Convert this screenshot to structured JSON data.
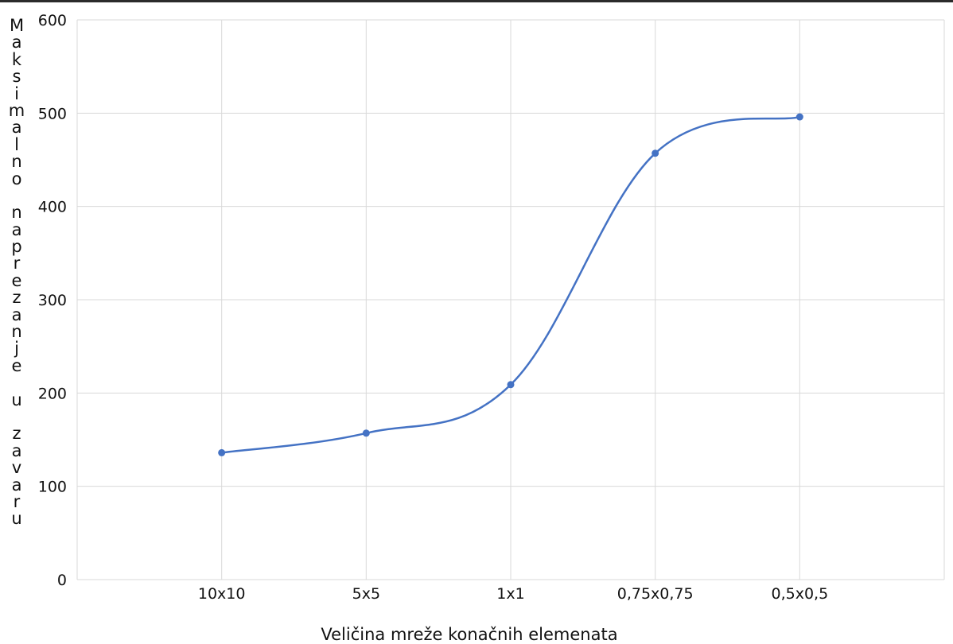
{
  "chart_data": {
    "type": "line",
    "smooth": true,
    "title": "",
    "xlabel": "Veličina mreže konačnih elemenata",
    "ylabel": "Maksimalno naprezanje u zavaru",
    "categories": [
      "10x10",
      "5x5",
      "1x1",
      "0,75x0,75",
      "0,5x0,5"
    ],
    "series": [
      {
        "values": [
          136,
          157,
          209,
          457,
          496
        ]
      }
    ],
    "ylim": [
      0,
      600
    ],
    "yticks": [
      0,
      100,
      200,
      300,
      400,
      500,
      600
    ],
    "grid": true,
    "legend": "none",
    "colors": {
      "line": "#4472C4",
      "grid": "#d9d9d9",
      "text": "#111111"
    }
  }
}
